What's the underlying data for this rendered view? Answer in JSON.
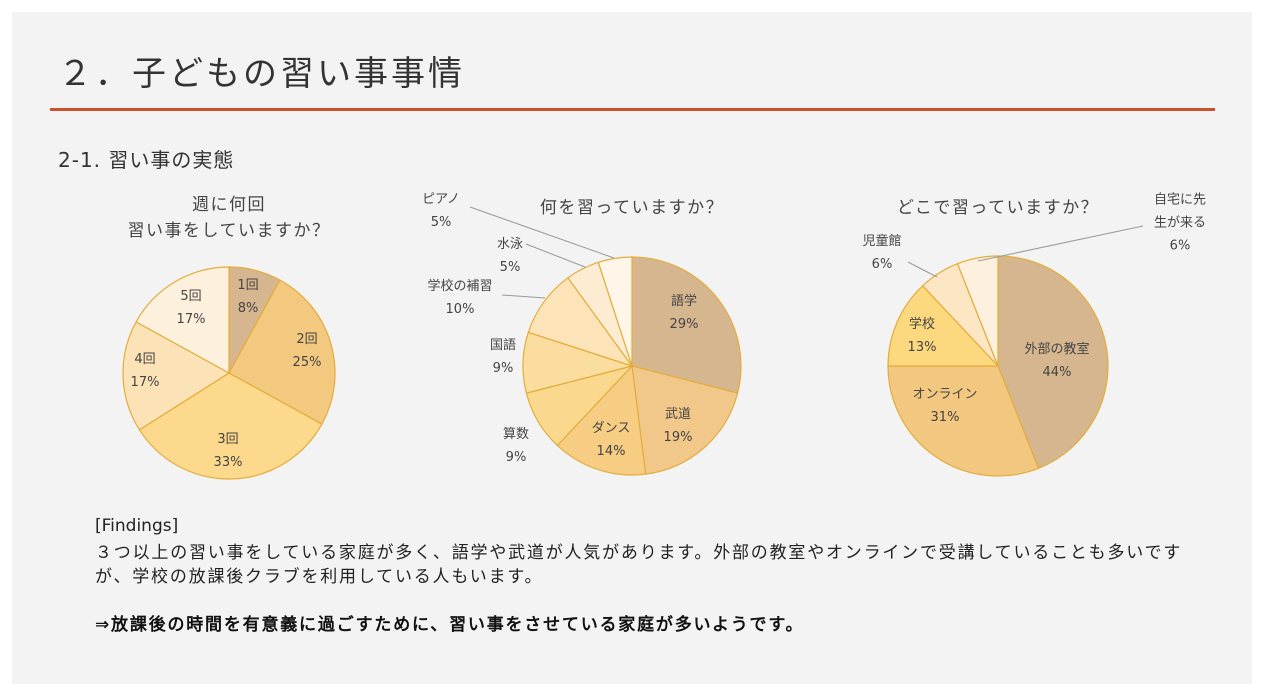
{
  "title": "２．子どもの習い事事情",
  "subtitle": "2-1. 習い事の実態",
  "findings": {
    "heading": "[Findings]",
    "body": "３つ以上の習い事をしている家庭が多く、語学や武道が人気があります。外部の教室やオンラインで受講していることも多いですが、学校の放課後クラブを利用している人もいます。",
    "conclusion": "⇒放課後の時間を有意義に過ごすために、習い事をさせている家庭が多いようです。"
  },
  "chart_data": [
    {
      "type": "pie",
      "title": "週に何回\n習い事をしていますか？",
      "categories": [
        "1回",
        "2回",
        "3回",
        "4回",
        "5回"
      ],
      "values": [
        8,
        25,
        33,
        17,
        17
      ],
      "value_labels": [
        "8%",
        "25%",
        "33%",
        "17%",
        "17%"
      ],
      "colors": [
        "#d6b68f",
        "#f3c97f",
        "#fcd98c",
        "#fce3b7",
        "#fdf0dd"
      ]
    },
    {
      "type": "pie",
      "title": "何を習っていますか？",
      "categories": [
        "語学",
        "武道",
        "ダンス",
        "算数",
        "国語",
        "学校の補習",
        "水泳",
        "ピアノ"
      ],
      "values": [
        29,
        19,
        14,
        9,
        9,
        10,
        5,
        5
      ],
      "value_labels": [
        "29%",
        "19%",
        "14%",
        "9%",
        "9%",
        "10%",
        "5%",
        "5%"
      ],
      "colors": [
        "#d6b68f",
        "#f2c88a",
        "#f6cd82",
        "#fad98f",
        "#fbdd9f",
        "#fce4b8",
        "#fdecd2",
        "#fff5e8"
      ]
    },
    {
      "type": "pie",
      "title": "どこで習っていますか？",
      "categories": [
        "外部の教室",
        "オンライン",
        "学校",
        "児童館",
        "自宅に先\n生が来る"
      ],
      "values": [
        44,
        31,
        13,
        6,
        6
      ],
      "value_labels": [
        "44%",
        "31%",
        "13%",
        "6%",
        "6%"
      ],
      "colors": [
        "#d6b68f",
        "#f2c77f",
        "#fcd97e",
        "#fce6c4",
        "#fdf0df"
      ]
    }
  ]
}
